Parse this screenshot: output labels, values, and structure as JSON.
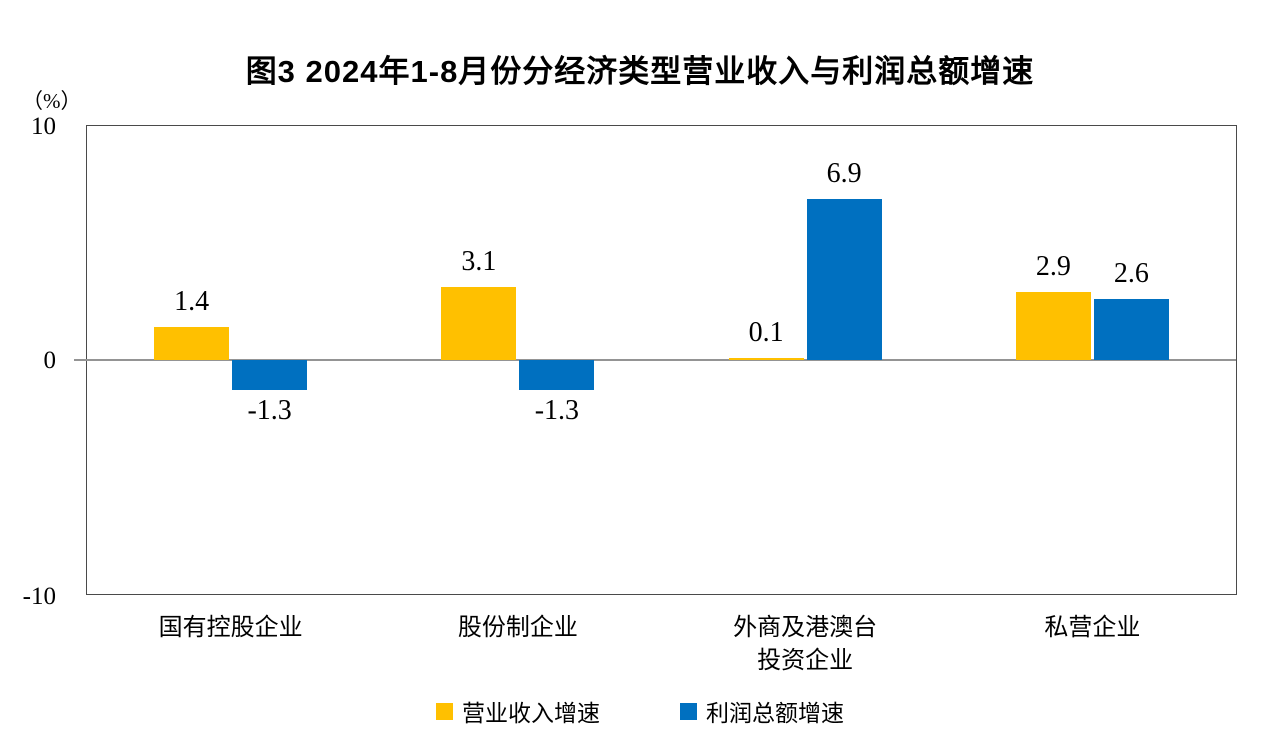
{
  "chart_data": {
    "type": "bar",
    "title": "图3  2024年1-8月份分经济类型营业收入与利润总额增速",
    "ylabel": "（%）",
    "ylim": [
      -10,
      10
    ],
    "yticks": [
      "10",
      "0",
      "-10"
    ],
    "grid": false,
    "legend_position": "bottom",
    "categories": [
      "国有控股企业",
      "股份制企业",
      "外商及港澳台\n投资企业",
      "私营企业"
    ],
    "series": [
      {
        "name": "营业收入增速",
        "color": "#FFC000",
        "values": [
          1.4,
          3.1,
          0.1,
          2.9
        ]
      },
      {
        "name": "利润总额增速",
        "color": "#0070C0",
        "values": [
          -1.3,
          -1.3,
          6.9,
          2.6
        ]
      }
    ],
    "zero_line_color": "#949494",
    "plot_border_color": "#4a4a4a"
  }
}
